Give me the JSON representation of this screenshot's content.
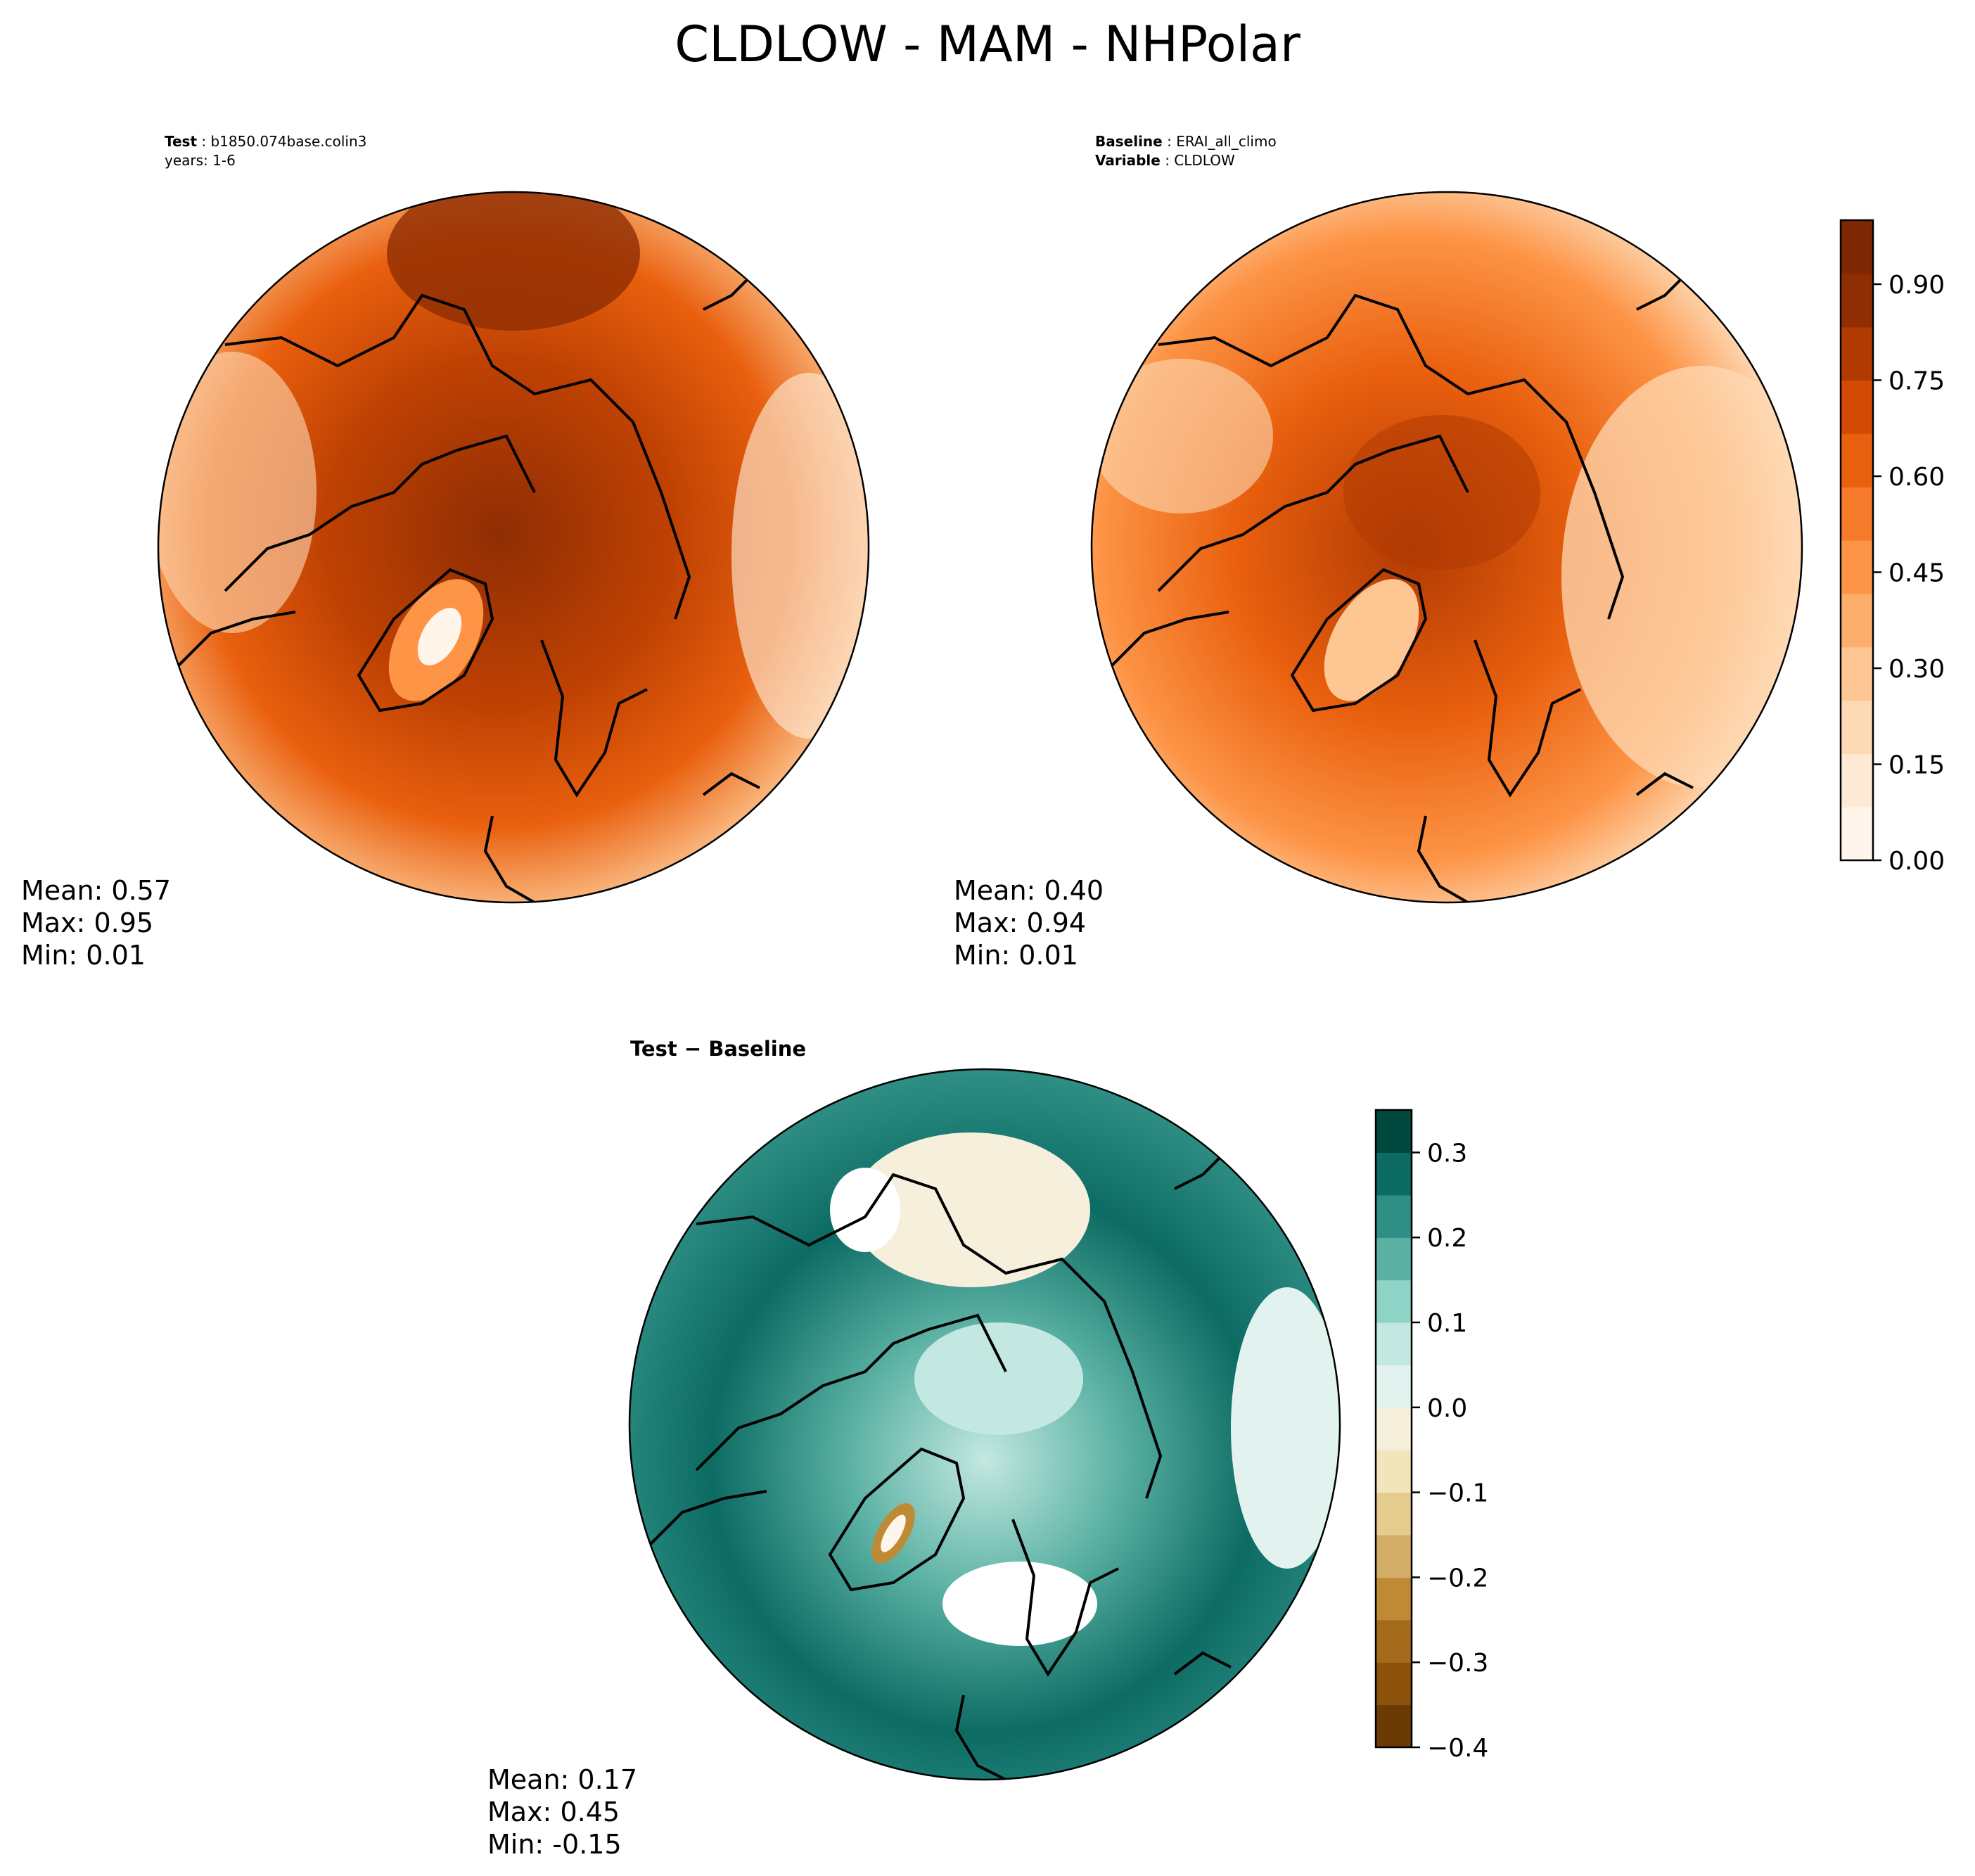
{
  "figure": {
    "title": "CLDLOW - MAM - NHPolar"
  },
  "panels": [
    {
      "id": "test",
      "line1_label": "Test",
      "line1_value": "b1850.074base.colin3",
      "line2_text": "years: 1-6",
      "stats": {
        "mean": "Mean:  0.57",
        "max": "Max:  0.95",
        "min": "Min:  0.01"
      }
    },
    {
      "id": "baseline",
      "line1_label": "Baseline",
      "line1_value": "ERAI_all_climo",
      "line2_label": "Variable",
      "line2_value": "CLDLOW",
      "stats": {
        "mean": "Mean:  0.40",
        "max": "Max:  0.94",
        "min": "Min:  0.01"
      }
    },
    {
      "id": "diff",
      "title": "Test − Baseline",
      "stats": {
        "mean": "Mean:  0.17",
        "max": "Max:  0.45",
        "min": "Min: -0.15"
      }
    }
  ],
  "colorbars": {
    "main": {
      "range": [
        0.0,
        1.0
      ],
      "tick_values": [
        0.0,
        0.15,
        0.3,
        0.45,
        0.6,
        0.75,
        0.9
      ],
      "tick_labels": [
        "0.00",
        "0.15",
        "0.30",
        "0.45",
        "0.60",
        "0.75",
        "0.90"
      ],
      "colors": [
        "#fff5eb",
        "#fee9d4",
        "#fdd9b4",
        "#fdc692",
        "#fdae6b",
        "#fd9446",
        "#f67a29",
        "#e9600e",
        "#d34a04",
        "#b13a03",
        "#8f2d03",
        "#7f2704"
      ]
    },
    "diff": {
      "range": [
        -0.4,
        0.35
      ],
      "tick_values": [
        -0.4,
        -0.3,
        -0.2,
        -0.1,
        0.0,
        0.1,
        0.2,
        0.3
      ],
      "tick_labels": [
        "−0.4",
        "−0.3",
        "−0.2",
        "−0.1",
        "0.0",
        "0.1",
        "0.2",
        "0.3"
      ],
      "colors": [
        "#6b3b06",
        "#8c520c",
        "#a56b1c",
        "#bf8a35",
        "#d3ae68",
        "#e5cb8e",
        "#f2e4bb",
        "#f6efdb",
        "#e2f2ef",
        "#c3e8e1",
        "#8fd3c7",
        "#5ab1a3",
        "#2f8f85",
        "#0c6b63",
        "#00493f"
      ]
    }
  },
  "chart_data": [
    {
      "type": "heatmap",
      "title": "Test: b1850.074base.colin3",
      "variable": "CLDLOW",
      "season": "MAM",
      "region": "NHPolar",
      "mean": 0.57,
      "max": 0.95,
      "min": 0.01,
      "colorbar_range": [
        0.0,
        1.0
      ]
    },
    {
      "type": "heatmap",
      "title": "Baseline: ERAI_all_climo",
      "variable": "CLDLOW",
      "season": "MAM",
      "region": "NHPolar",
      "mean": 0.4,
      "max": 0.94,
      "min": 0.01,
      "colorbar_range": [
        0.0,
        1.0
      ]
    },
    {
      "type": "heatmap",
      "title": "Test − Baseline",
      "mean": 0.17,
      "max": 0.45,
      "min": -0.15,
      "colorbar_range": [
        -0.4,
        0.35
      ]
    }
  ]
}
